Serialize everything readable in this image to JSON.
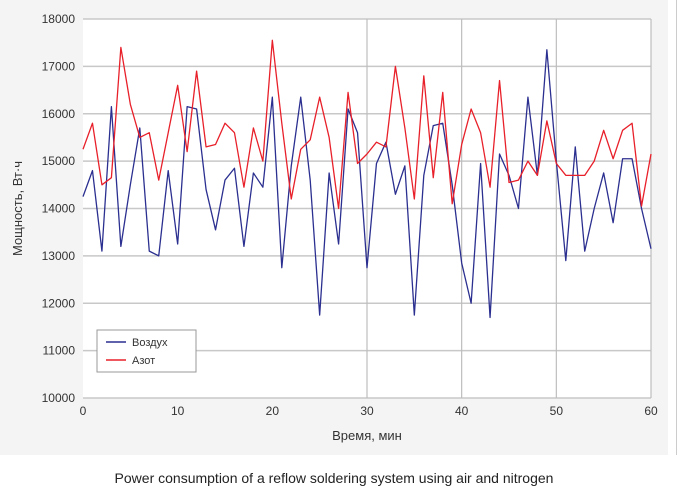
{
  "caption": "Power consumption of a reflow soldering system using air and nitrogen",
  "chart_data": {
    "type": "line",
    "title": "",
    "xlabel": "Время, мин",
    "ylabel": "Мощность, Вт·ч",
    "xlim": [
      0,
      60
    ],
    "ylim": [
      10000,
      18000
    ],
    "xticks": [
      0,
      10,
      20,
      30,
      40,
      50,
      60
    ],
    "yticks": [
      10000,
      11000,
      12000,
      13000,
      14000,
      15000,
      16000,
      17000,
      18000
    ],
    "grid": true,
    "legend_placement": "bottom-left",
    "x": [
      0,
      1,
      2,
      3,
      4,
      5,
      6,
      7,
      8,
      9,
      10,
      11,
      12,
      13,
      14,
      15,
      16,
      17,
      18,
      19,
      20,
      21,
      22,
      23,
      24,
      25,
      26,
      27,
      28,
      29,
      30,
      31,
      32,
      33,
      34,
      35,
      36,
      37,
      38,
      39,
      40,
      41,
      42,
      43,
      44,
      45,
      46,
      47,
      48,
      49,
      50,
      51,
      52,
      53,
      54,
      55,
      56,
      57,
      58,
      59,
      60
    ],
    "series": [
      {
        "name": "Воздух",
        "color": "#2b2f8f",
        "values": [
          14250,
          14800,
          13100,
          16150,
          13200,
          14500,
          15700,
          13100,
          13000,
          14800,
          13250,
          16150,
          16100,
          14400,
          13550,
          14600,
          14850,
          13200,
          14750,
          14450,
          16350,
          12750,
          14900,
          16350,
          14600,
          11750,
          14750,
          13250,
          16100,
          15600,
          12750,
          14950,
          15400,
          14300,
          14900,
          11750,
          14700,
          15750,
          15800,
          14500,
          12850,
          12000,
          14950,
          11700,
          15150,
          14700,
          14000,
          16350,
          14700,
          17350,
          15000,
          12900,
          15300,
          13100,
          14000,
          14750,
          13700,
          15050,
          15050,
          14000,
          13150
        ]
      },
      {
        "name": "Азот",
        "color": "#e8202a",
        "values": [
          15250,
          15800,
          14500,
          14650,
          17400,
          16200,
          15500,
          15600,
          14600,
          15600,
          16600,
          15200,
          16900,
          15300,
          15350,
          15800,
          15600,
          14450,
          15700,
          15000,
          17550,
          15800,
          14200,
          15250,
          15450,
          16350,
          15500,
          14000,
          16450,
          14950,
          15150,
          15400,
          15300,
          17000,
          15700,
          14200,
          16800,
          14650,
          16450,
          14100,
          15350,
          16100,
          15600,
          14450,
          16700,
          14550,
          14600,
          15000,
          14700,
          15850,
          14950,
          14700,
          14700,
          14700,
          15000,
          15650,
          15050,
          15650,
          15800,
          14050,
          15150
        ]
      }
    ]
  }
}
